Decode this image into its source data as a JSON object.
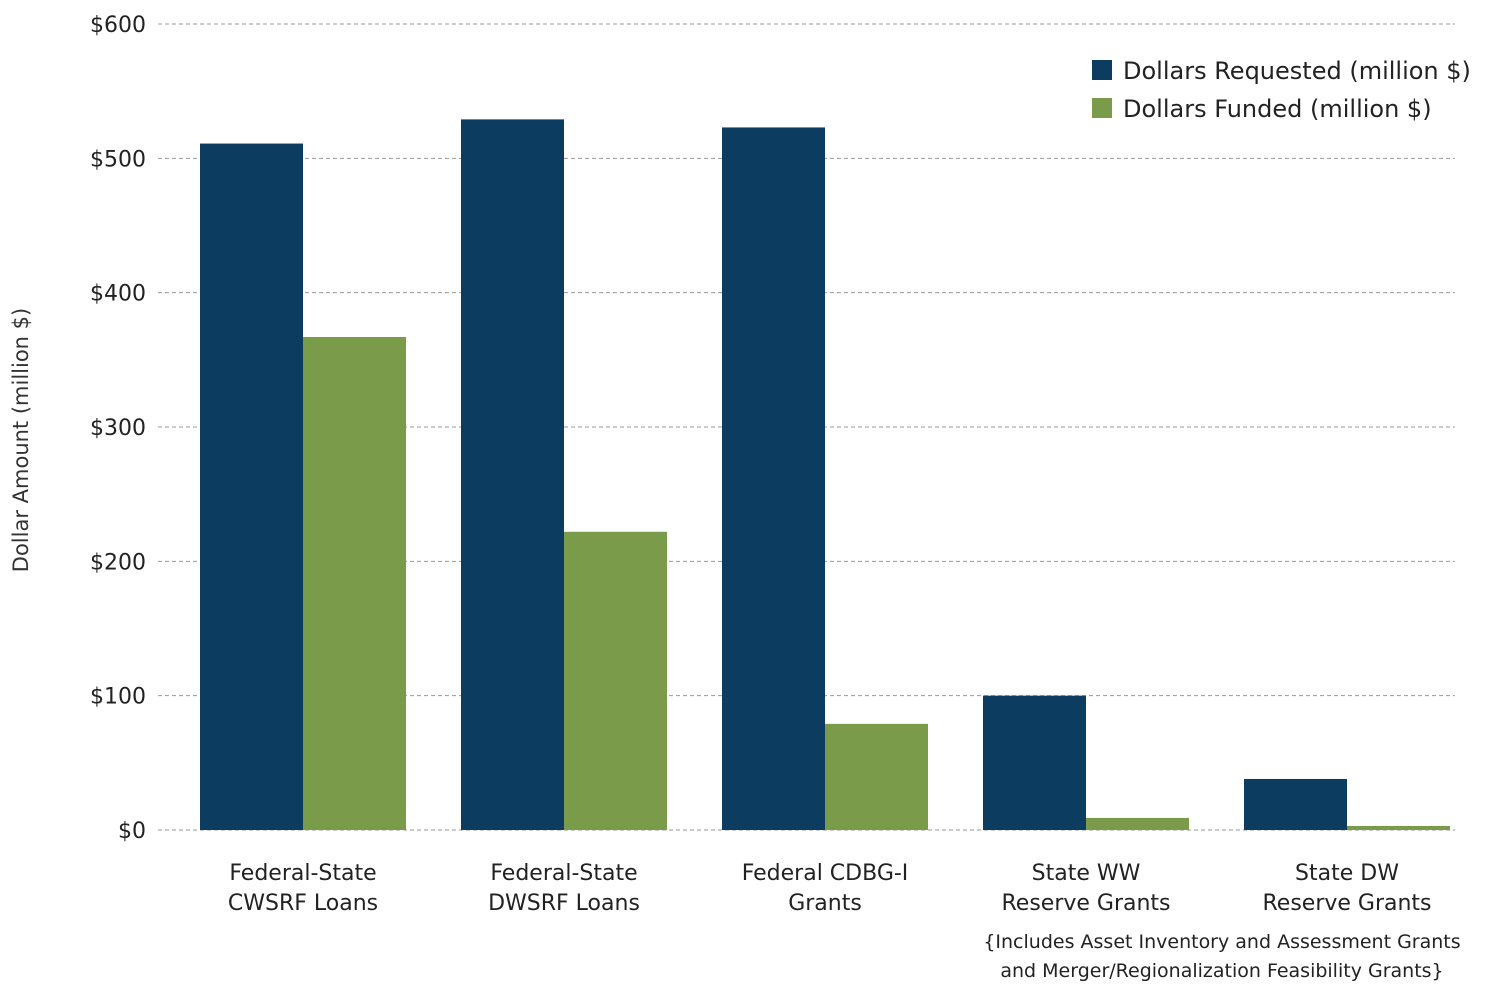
{
  "chart_data": {
    "type": "bar",
    "title": "",
    "xlabel": "",
    "ylabel": "Dollar Amount (million $)",
    "ylim": [
      0,
      600
    ],
    "yticks": [
      0,
      100,
      200,
      300,
      400,
      500,
      600
    ],
    "ytick_labels": [
      "$0",
      "$100",
      "$200",
      "$300",
      "$400",
      "$500",
      "$600"
    ],
    "grid": true,
    "legend_position": "top-right",
    "categories": [
      [
        "Federal-State",
        "CWSRF Loans"
      ],
      [
        "Federal-State",
        "DWSRF Loans"
      ],
      [
        "Federal CDBG-I",
        "Grants"
      ],
      [
        "State WW",
        "Reserve Grants"
      ],
      [
        "State DW",
        "Reserve Grants"
      ]
    ],
    "series": [
      {
        "name": "Dollars Requested (million $)",
        "color": "#0d3c61",
        "values": [
          511,
          529,
          523,
          100,
          38
        ]
      },
      {
        "name": "Dollars Funded (million $)",
        "color": "#7a9b4a",
        "values": [
          367,
          222,
          79,
          9,
          3
        ]
      }
    ],
    "annotation": [
      "{Includes Asset Inventory and Assessment Grants",
      "and Merger/Regionalization Feasibility Grants}"
    ]
  }
}
